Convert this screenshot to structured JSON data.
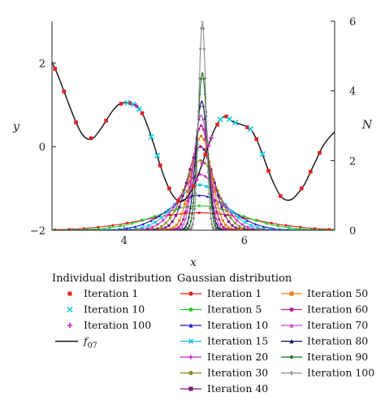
{
  "chart_data": {
    "type": "line",
    "x_label": "x",
    "y_label": "y",
    "y2_label": "N",
    "xlim": [
      2.8,
      7.5
    ],
    "ylim": [
      -2,
      3
    ],
    "y2lim": [
      0,
      6
    ],
    "x_ticks": [
      "4",
      "6"
    ],
    "y_ticks": [
      "−2",
      "0",
      "2"
    ],
    "y2_ticks": [
      "0",
      "2",
      "4",
      "6"
    ],
    "grid": false,
    "function": {
      "name": "f",
      "subscript": "07",
      "x": [
        2.8,
        2.9,
        3.0,
        3.1,
        3.2,
        3.3,
        3.4,
        3.5,
        3.6,
        3.7,
        3.8,
        3.9,
        4.0,
        4.1,
        4.2,
        4.3,
        4.4,
        4.5,
        4.6,
        4.7,
        4.8,
        4.9,
        5.0,
        5.1,
        5.2,
        5.3,
        5.4,
        5.5,
        5.6,
        5.7,
        5.8,
        5.9,
        6.0,
        6.1,
        6.2,
        6.3,
        6.4,
        6.5,
        6.6,
        6.7,
        6.8,
        6.9,
        7.0,
        7.1,
        7.2,
        7.3,
        7.4,
        7.5
      ],
      "y": [
        2.02,
        1.7,
        1.32,
        0.94,
        0.58,
        0.3,
        0.18,
        0.22,
        0.4,
        0.62,
        0.84,
        1.0,
        1.05,
        1.04,
        0.98,
        0.8,
        0.45,
        0.02,
        -0.45,
        -0.85,
        -1.15,
        -1.3,
        -1.28,
        -1.1,
        -0.8,
        -0.4,
        0.02,
        0.4,
        0.65,
        0.72,
        0.6,
        0.55,
        0.5,
        0.42,
        0.18,
        -0.18,
        -0.58,
        -0.92,
        -1.18,
        -1.28,
        -1.25,
        -1.1,
        -0.9,
        -0.6,
        -0.3,
        0.0,
        0.2,
        0.35
      ]
    },
    "individual_series": [
      {
        "name": "Iteration 1",
        "marker": "square",
        "color": "#e0201c",
        "x": [
          2.85,
          3.0,
          3.2,
          3.45,
          3.7,
          3.95,
          4.1,
          4.3,
          4.6,
          4.75,
          4.9,
          5.15,
          5.35,
          5.55,
          5.7,
          6.05,
          6.2,
          6.4,
          6.6,
          6.95,
          7.1,
          7.25
        ]
      },
      {
        "name": "Iteration 10",
        "marker": "x",
        "color": "#17c7e0",
        "x": [
          4.05,
          4.15,
          4.25,
          4.45,
          4.55,
          5.6,
          5.75,
          5.85,
          6.1,
          6.3
        ]
      },
      {
        "name": "Iteration 100",
        "marker": "plus",
        "color": "#d020d0",
        "x": [
          4.2,
          5.2,
          5.3,
          5.4,
          5.45
        ]
      }
    ],
    "gaussian_series": [
      {
        "name": "Iteration 1",
        "color": "#e0201c",
        "marker": "circle",
        "mu": 5.25,
        "sigma": 0.9,
        "peak": 0.5
      },
      {
        "name": "Iteration 5",
        "color": "#2ec92e",
        "marker": "circle",
        "mu": 5.25,
        "sigma": 0.7,
        "peak": 0.7
      },
      {
        "name": "Iteration 10",
        "color": "#1a1ac8",
        "marker": "triangle",
        "mu": 5.25,
        "sigma": 0.5,
        "peak": 1.0
      },
      {
        "name": "Iteration 15",
        "color": "#17c7e0",
        "marker": "x",
        "mu": 5.26,
        "sigma": 0.4,
        "peak": 1.3
      },
      {
        "name": "Iteration 20",
        "color": "#d020d0",
        "marker": "plus",
        "mu": 5.26,
        "sigma": 0.33,
        "peak": 1.6
      },
      {
        "name": "Iteration 30",
        "color": "#8a8a1a",
        "marker": "circle",
        "mu": 5.27,
        "sigma": 0.27,
        "peak": 2.0
      },
      {
        "name": "Iteration 40",
        "color": "#7a1a7a",
        "marker": "square",
        "mu": 5.27,
        "sigma": 0.22,
        "peak": 2.4
      },
      {
        "name": "Iteration 50",
        "color": "#e8801a",
        "marker": "square",
        "mu": 5.28,
        "sigma": 0.17,
        "peak": 2.7
      },
      {
        "name": "Iteration 60",
        "color": "#c0208a",
        "marker": "circle",
        "mu": 5.28,
        "sigma": 0.14,
        "peak": 3.0
      },
      {
        "name": "Iteration 70",
        "color": "#c84ac8",
        "marker": "triangle",
        "mu": 5.28,
        "sigma": 0.12,
        "peak": 3.3
      },
      {
        "name": "Iteration 80",
        "color": "#10105a",
        "marker": "triangle",
        "mu": 5.29,
        "sigma": 0.1,
        "peak": 3.7
      },
      {
        "name": "Iteration 90",
        "color": "#1a6a1a",
        "marker": "diamond",
        "mu": 5.3,
        "sigma": 0.08,
        "peak": 4.5
      },
      {
        "name": "Iteration 100",
        "color": "#8a8a8a",
        "marker": "plus",
        "mu": 5.3,
        "sigma": 0.06,
        "peak": 6.0
      }
    ]
  },
  "legend": {
    "individual_title": "Individual distribution",
    "gaussian_title": "Gaussian distribution",
    "individual_items": [
      "Iteration 1",
      "Iteration 10",
      "Iteration 100"
    ],
    "function_label": "f",
    "function_subscript": "07",
    "gaussian_col1": [
      "Iteration 1",
      "Iteration 5",
      "Iteration 10",
      "Iteration 15",
      "Iteration 20",
      "Iteration 30",
      "Iteration 40"
    ],
    "gaussian_col2": [
      "Iteration 50",
      "Iteration 60",
      "Iteration 70",
      "Iteration 80",
      "Iteration 90",
      "Iteration 100"
    ]
  }
}
